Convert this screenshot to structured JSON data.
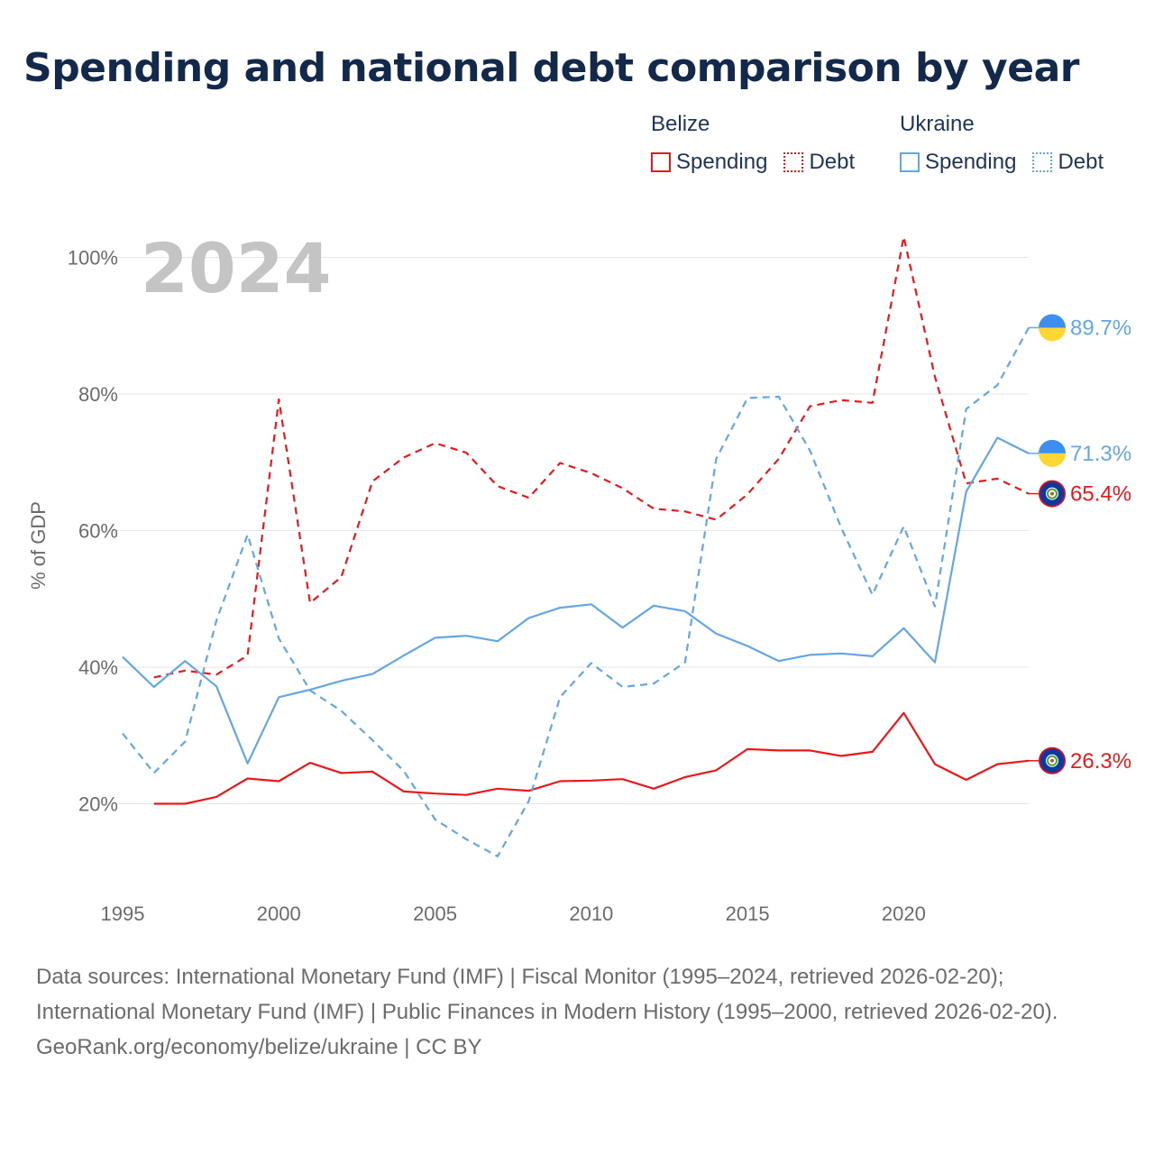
{
  "title": "Spending and national debt comparison by year",
  "legend": {
    "groups": [
      {
        "name": "Belize",
        "items": [
          {
            "label": "Spending",
            "style": "solid",
            "color": "#e8191a"
          },
          {
            "label": "Debt",
            "style": "dotted",
            "color": "#e8191a"
          }
        ]
      },
      {
        "name": "Ukraine",
        "items": [
          {
            "label": "Spending",
            "style": "solid",
            "color": "#63a6e4"
          },
          {
            "label": "Debt",
            "style": "dotted",
            "color": "#63a6e4"
          }
        ]
      }
    ]
  },
  "chart_data": {
    "type": "line",
    "title": "Spending and national debt comparison by year",
    "ylabel": "% of GDP",
    "xlabel": "",
    "current_year": "2024",
    "xlim": [
      1995,
      2024
    ],
    "ylim": [
      7,
      106
    ],
    "y_ticks": [
      20,
      40,
      60,
      80,
      100
    ],
    "y_tick_labels": [
      "20%",
      "40%",
      "60%",
      "80%",
      "100%"
    ],
    "x_ticks": [
      1995,
      2000,
      2005,
      2010,
      2015,
      2020
    ],
    "x_tick_labels": [
      "1995",
      "2000",
      "2005",
      "2010",
      "2015",
      "2020"
    ],
    "grid": true,
    "series": [
      {
        "name": "Belize Spending",
        "country": "Belize",
        "metric": "Spending",
        "color": "#e8191a",
        "dash": "solid",
        "end_label": "26.3%",
        "flag": "belize",
        "x": [
          1996,
          1997,
          1998,
          1999,
          2000,
          2001,
          2002,
          2003,
          2004,
          2005,
          2006,
          2007,
          2008,
          2009,
          2010,
          2011,
          2012,
          2013,
          2014,
          2015,
          2016,
          2017,
          2018,
          2019,
          2020,
          2021,
          2022,
          2023,
          2024
        ],
        "values": [
          20.0,
          20.0,
          21.0,
          23.7,
          23.3,
          26.0,
          24.5,
          24.7,
          21.8,
          21.5,
          21.3,
          22.2,
          21.9,
          23.3,
          23.4,
          23.6,
          22.2,
          23.9,
          24.9,
          28.0,
          27.8,
          27.8,
          27.0,
          27.6,
          33.3,
          25.8,
          23.5,
          25.8,
          26.3
        ]
      },
      {
        "name": "Belize Debt",
        "country": "Belize",
        "metric": "Debt",
        "color": "#e8191a",
        "dash": "dashed",
        "end_label": "65.4%",
        "flag": "belize",
        "x": [
          1996,
          1997,
          1998,
          1999,
          2000,
          2001,
          2002,
          2003,
          2004,
          2005,
          2006,
          2007,
          2008,
          2009,
          2010,
          2011,
          2012,
          2013,
          2014,
          2015,
          2016,
          2017,
          2018,
          2019,
          2020,
          2021,
          2022,
          2023,
          2024
        ],
        "values": [
          38.5,
          39.5,
          38.9,
          41.7,
          79.2,
          49.4,
          53.2,
          67.2,
          70.7,
          72.8,
          71.4,
          66.5,
          64.8,
          69.9,
          68.4,
          66.2,
          63.2,
          62.8,
          61.6,
          65.3,
          70.5,
          78.2,
          79.1,
          78.7,
          103.0,
          82.5,
          66.9,
          67.6,
          65.4
        ]
      },
      {
        "name": "Ukraine Spending",
        "country": "Ukraine",
        "metric": "Spending",
        "color": "#63a6e4",
        "dash": "solid",
        "end_label": "71.3%",
        "flag": "ukraine",
        "x": [
          1995,
          1996,
          1997,
          1998,
          1999,
          2000,
          2001,
          2002,
          2003,
          2004,
          2005,
          2006,
          2007,
          2008,
          2009,
          2010,
          2011,
          2012,
          2013,
          2014,
          2015,
          2016,
          2017,
          2018,
          2019,
          2020,
          2021,
          2022,
          2023,
          2024
        ],
        "values": [
          41.5,
          37.1,
          40.9,
          37.2,
          25.9,
          35.6,
          36.7,
          38.0,
          39.0,
          41.7,
          44.3,
          44.6,
          43.8,
          47.2,
          48.7,
          49.2,
          45.8,
          49.0,
          48.2,
          44.9,
          43.1,
          40.9,
          41.8,
          42.0,
          41.6,
          45.7,
          40.7,
          65.7,
          73.6,
          71.3
        ]
      },
      {
        "name": "Ukraine Debt",
        "country": "Ukraine",
        "metric": "Debt",
        "color": "#63a6e4",
        "dash": "dashed",
        "end_label": "89.7%",
        "flag": "ukraine",
        "x": [
          1995,
          1996,
          1997,
          1998,
          1999,
          2000,
          2001,
          2002,
          2003,
          2004,
          2005,
          2006,
          2007,
          2008,
          2009,
          2010,
          2011,
          2012,
          2013,
          2014,
          2015,
          2016,
          2017,
          2018,
          2019,
          2020,
          2021,
          2022,
          2023,
          2024
        ],
        "values": [
          30.3,
          24.5,
          29.1,
          46.8,
          59.4,
          44.2,
          36.6,
          33.6,
          29.3,
          24.8,
          17.7,
          14.8,
          12.3,
          20.4,
          35.6,
          40.6,
          37.1,
          37.6,
          40.7,
          70.5,
          79.4,
          79.6,
          71.7,
          60.4,
          50.6,
          60.6,
          48.9,
          77.8,
          81.3,
          89.7
        ]
      }
    ]
  },
  "footer": {
    "sources": "Data sources: International Monetary Fund (IMF) | Fiscal Monitor (1995–2024, retrieved 2026-02-20); International Monetary Fund (IMF) | Public Finances in Modern History (1995–2000, retrieved 2026-02-20).",
    "credit": "GeoRank.org/economy/belize/ukraine | CC BY"
  },
  "colors": {
    "title": "#13294b",
    "belize": "#e8191a",
    "ukraine": "#63a6e4",
    "grid": "#e6e6e6",
    "tick": "#6b6b6b"
  }
}
